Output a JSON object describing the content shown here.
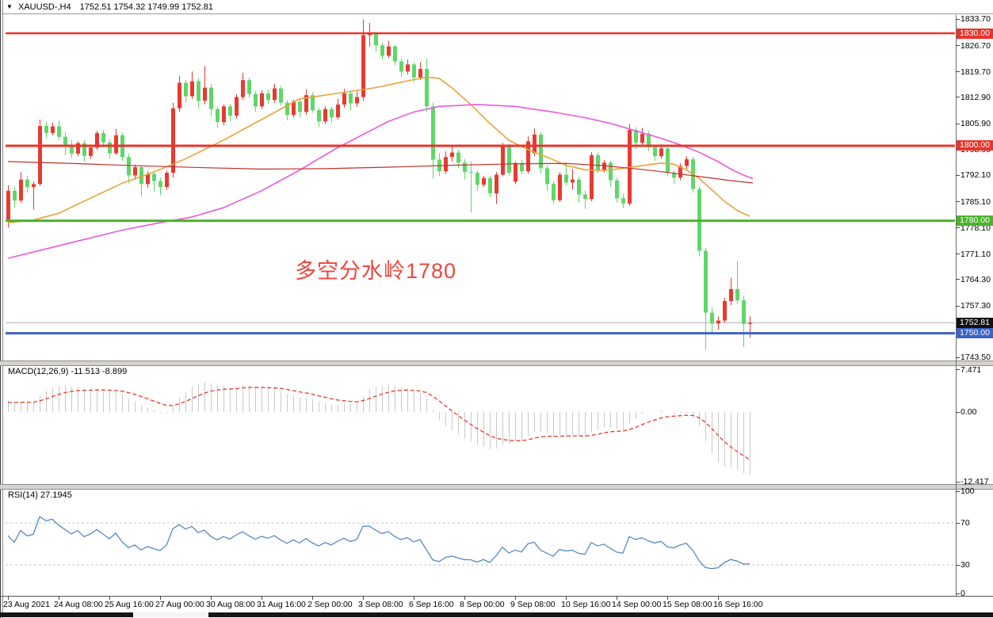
{
  "title": {
    "symbol": "XAUUSD-,H4",
    "quote": "1752.51 1754.32 1749.99 1752.81"
  },
  "chart_data": {
    "type": "candlestick",
    "symbol": "XAUUSD-",
    "timeframe": "H4",
    "ohlc_display": {
      "open": "1752.51",
      "high": "1754.32",
      "low": "1749.99",
      "close": "1752.81"
    },
    "annotation": {
      "text": "多空分水岭1780",
      "color": "#f2453a"
    },
    "price_ticks": [
      "1833.70",
      "1826.70",
      "1819.70",
      "1812.90",
      "1805.90",
      "1798.90",
      "1792.10",
      "1785.10",
      "1778.10",
      "1771.10",
      "1764.30",
      "1757.30",
      "1743.50"
    ],
    "levels": [
      {
        "price": 1830.0,
        "label": "1830.00",
        "color": "#e8352b",
        "width": 2.4
      },
      {
        "price": 1800.0,
        "label": "1800.00",
        "color": "#e8352b",
        "width": 3
      },
      {
        "price": 1780.0,
        "label": "1780.00",
        "color": "#4cb32c",
        "width": 3
      },
      {
        "price": 1750.0,
        "label": "1750.00",
        "color": "#3b63c4",
        "width": 3
      }
    ],
    "current_price": {
      "value": 1752.81,
      "label": "1752.81",
      "line_color": "#b0b0b0",
      "badge_bg": "#101010"
    },
    "x_labels": [
      [
        0,
        "23 Aug 2021"
      ],
      [
        8,
        "24 Aug 08:00"
      ],
      [
        16,
        "25 Aug 16:00"
      ],
      [
        24,
        "27 Aug 00:00"
      ],
      [
        32,
        "30 Aug 08:00"
      ],
      [
        40,
        "31 Aug 16:00"
      ],
      [
        48,
        "2 Sep 00:00"
      ],
      [
        56,
        "3 Sep 08:00"
      ],
      [
        64,
        "6 Sep 16:00"
      ],
      [
        72,
        "8 Sep 00:00"
      ],
      [
        80,
        "9 Sep 08:00"
      ],
      [
        88,
        "10 Sep 16:00"
      ],
      [
        96,
        "14 Sep 00:00"
      ],
      [
        104,
        "15 Sep 08:00"
      ],
      [
        112,
        "16 Sep 16:00"
      ]
    ],
    "candles": [
      [
        1780.3,
        1789.5,
        1778.2,
        1788.0
      ],
      [
        1788.0,
        1789.0,
        1783.5,
        1785.4
      ],
      [
        1785.4,
        1793.0,
        1784.8,
        1791.0
      ],
      [
        1791.0,
        1792.0,
        1787.5,
        1789.0
      ],
      [
        1789.0,
        1790.5,
        1783.0,
        1789.8
      ],
      [
        1789.8,
        1807.0,
        1789.3,
        1805.3
      ],
      [
        1805.3,
        1806.5,
        1802.0,
        1803.4
      ],
      [
        1803.4,
        1806.2,
        1802.8,
        1805.2
      ],
      [
        1805.2,
        1806.8,
        1801.5,
        1802.4
      ],
      [
        1802.4,
        1803.6,
        1797.5,
        1800.3
      ],
      [
        1800.3,
        1801.5,
        1796.8,
        1797.9
      ],
      [
        1797.9,
        1801.2,
        1797.2,
        1800.7
      ],
      [
        1800.7,
        1801.5,
        1795.8,
        1797.3
      ],
      [
        1797.3,
        1800.0,
        1796.5,
        1799.5
      ],
      [
        1799.5,
        1804.0,
        1798.8,
        1803.4
      ],
      [
        1803.4,
        1804.2,
        1800.2,
        1800.9
      ],
      [
        1800.9,
        1801.8,
        1796.5,
        1798.0
      ],
      [
        1798.0,
        1804.5,
        1797.5,
        1802.8
      ],
      [
        1802.8,
        1803.5,
        1796.0,
        1797.0
      ],
      [
        1797.0,
        1798.0,
        1790.0,
        1792.1
      ],
      [
        1792.1,
        1795.0,
        1791.0,
        1794.3
      ],
      [
        1794.3,
        1794.8,
        1786.5,
        1789.8
      ],
      [
        1789.8,
        1793.2,
        1788.8,
        1792.5
      ],
      [
        1792.5,
        1793.0,
        1787.8,
        1790.6
      ],
      [
        1790.6,
        1791.5,
        1786.8,
        1789.0
      ],
      [
        1789.0,
        1793.4,
        1788.2,
        1792.8
      ],
      [
        1792.8,
        1811.5,
        1791.5,
        1810.0
      ],
      [
        1810.0,
        1818.7,
        1809.0,
        1816.8
      ],
      [
        1816.8,
        1817.5,
        1811.5,
        1813.2
      ],
      [
        1813.2,
        1819.8,
        1812.5,
        1817.2
      ],
      [
        1817.2,
        1818.0,
        1810.0,
        1812.0
      ],
      [
        1812.0,
        1821.3,
        1811.0,
        1815.5
      ],
      [
        1815.5,
        1816.5,
        1808.0,
        1809.8
      ],
      [
        1809.8,
        1810.5,
        1804.8,
        1806.3
      ],
      [
        1806.3,
        1811.0,
        1805.5,
        1810.5
      ],
      [
        1810.5,
        1811.2,
        1806.5,
        1808.0
      ],
      [
        1808.0,
        1813.8,
        1807.2,
        1813.0
      ],
      [
        1813.0,
        1819.5,
        1812.2,
        1817.5
      ],
      [
        1817.5,
        1818.2,
        1812.8,
        1813.8
      ],
      [
        1813.8,
        1814.5,
        1809.0,
        1810.5
      ],
      [
        1810.5,
        1814.8,
        1809.8,
        1814.0
      ],
      [
        1814.0,
        1815.0,
        1811.2,
        1812.2
      ],
      [
        1812.2,
        1816.5,
        1811.5,
        1815.3
      ],
      [
        1815.3,
        1816.0,
        1810.8,
        1811.5
      ],
      [
        1811.5,
        1812.2,
        1806.8,
        1808.2
      ],
      [
        1808.2,
        1812.3,
        1807.5,
        1811.8
      ],
      [
        1811.8,
        1812.5,
        1807.5,
        1809.0
      ],
      [
        1809.0,
        1815.0,
        1808.3,
        1813.5
      ],
      [
        1813.5,
        1814.2,
        1808.8,
        1809.5
      ],
      [
        1809.5,
        1810.2,
        1805.0,
        1806.5
      ],
      [
        1806.5,
        1810.5,
        1805.8,
        1809.8
      ],
      [
        1809.8,
        1810.5,
        1806.0,
        1807.6
      ],
      [
        1807.6,
        1812.5,
        1807.0,
        1811.0
      ],
      [
        1811.0,
        1815.2,
        1810.2,
        1814.0
      ],
      [
        1814.0,
        1814.8,
        1809.5,
        1811.3
      ],
      [
        1811.3,
        1814.5,
        1810.3,
        1813.0
      ],
      [
        1813.0,
        1833.7,
        1812.0,
        1829.5
      ],
      [
        1829.5,
        1832.8,
        1826.5,
        1830.0
      ],
      [
        1830.0,
        1830.5,
        1825.0,
        1826.8
      ],
      [
        1826.8,
        1827.5,
        1823.0,
        1824.0
      ],
      [
        1824.0,
        1828.0,
        1823.5,
        1826.5
      ],
      [
        1826.5,
        1827.0,
        1821.5,
        1822.5
      ],
      [
        1822.5,
        1823.2,
        1818.5,
        1819.8
      ],
      [
        1819.8,
        1823.0,
        1819.0,
        1821.7
      ],
      [
        1821.7,
        1822.3,
        1817.0,
        1818.2
      ],
      [
        1818.2,
        1822.3,
        1817.5,
        1820.5
      ],
      [
        1820.5,
        1823.3,
        1809.0,
        1810.5
      ],
      [
        1810.5,
        1811.5,
        1791.3,
        1796.3
      ],
      [
        1796.3,
        1798.0,
        1792.0,
        1793.2
      ],
      [
        1793.2,
        1798.5,
        1792.5,
        1797.0
      ],
      [
        1797.0,
        1799.9,
        1795.8,
        1798.2
      ],
      [
        1798.2,
        1799.0,
        1794.0,
        1795.5
      ],
      [
        1795.5,
        1796.5,
        1791.0,
        1793.0
      ],
      [
        1793.0,
        1795.8,
        1782.2,
        1792.8
      ],
      [
        1792.8,
        1793.4,
        1788.0,
        1789.6
      ],
      [
        1789.6,
        1792.0,
        1789.0,
        1791.4
      ],
      [
        1791.4,
        1792.0,
        1786.3,
        1787.3
      ],
      [
        1787.3,
        1793.0,
        1784.5,
        1792.3
      ],
      [
        1792.3,
        1800.8,
        1791.8,
        1799.8
      ],
      [
        1799.8,
        1800.5,
        1792.0,
        1792.8
      ],
      [
        1790.4,
        1795.8,
        1789.8,
        1795.4
      ],
      [
        1795.4,
        1796.2,
        1792.4,
        1793.2
      ],
      [
        1793.2,
        1802.5,
        1792.6,
        1801.2
      ],
      [
        1798.0,
        1804.6,
        1797.2,
        1803.0
      ],
      [
        1803.0,
        1803.6,
        1792.5,
        1794.0
      ],
      [
        1794.0,
        1794.8,
        1788.0,
        1789.8
      ],
      [
        1789.8,
        1790.5,
        1784.5,
        1785.5
      ],
      [
        1785.5,
        1793.0,
        1785.0,
        1792.3
      ],
      [
        1792.3,
        1795.5,
        1789.5,
        1790.2
      ],
      [
        1790.2,
        1793.8,
        1788.3,
        1791.0
      ],
      [
        1791.0,
        1791.8,
        1784.8,
        1787.0
      ],
      [
        1787.0,
        1788.0,
        1783.2,
        1785.8
      ],
      [
        1785.8,
        1798.3,
        1785.2,
        1797.5
      ],
      [
        1797.5,
        1798.2,
        1792.8,
        1793.6
      ],
      [
        1793.6,
        1796.2,
        1792.9,
        1795.5
      ],
      [
        1795.5,
        1796.0,
        1789.0,
        1790.8
      ],
      [
        1790.8,
        1791.5,
        1784.9,
        1786.0
      ],
      [
        1786.0,
        1787.2,
        1783.3,
        1784.6
      ],
      [
        1784.6,
        1805.8,
        1784.0,
        1804.2
      ],
      [
        1804.2,
        1804.9,
        1799.0,
        1800.8
      ],
      [
        1800.8,
        1804.8,
        1800.0,
        1803.2
      ],
      [
        1803.2,
        1803.9,
        1798.6,
        1799.6
      ],
      [
        1799.6,
        1800.3,
        1796.0,
        1797.2
      ],
      [
        1797.2,
        1800.5,
        1796.6,
        1799.3
      ],
      [
        1799.3,
        1800.0,
        1791.8,
        1792.8
      ],
      [
        1792.8,
        1793.5,
        1789.8,
        1791.5
      ],
      [
        1791.5,
        1795.3,
        1790.8,
        1794.6
      ],
      [
        1794.6,
        1797.2,
        1793.8,
        1796.4
      ],
      [
        1796.4,
        1797.0,
        1787.5,
        1788.5
      ],
      [
        1788.5,
        1789.2,
        1770.5,
        1772.0
      ],
      [
        1772.0,
        1772.8,
        1745.6,
        1755.5
      ],
      [
        1755.5,
        1757.0,
        1750.3,
        1752.6
      ],
      [
        1752.6,
        1754.5,
        1751.0,
        1753.4
      ],
      [
        1753.4,
        1759.5,
        1752.8,
        1758.6
      ],
      [
        1758.6,
        1764.8,
        1757.5,
        1761.8
      ],
      [
        1761.8,
        1769.3,
        1757.8,
        1758.8
      ],
      [
        1758.8,
        1760.0,
        1746.3,
        1752.5
      ],
      [
        1752.5,
        1754.5,
        1748.8,
        1752.81
      ]
    ],
    "moving_averages": {
      "fast": {
        "name": "ma-fast",
        "color": "#e9a23b",
        "points": [
          [
            0,
            1779.5
          ],
          [
            4,
            1780.2
          ],
          [
            8,
            1782
          ],
          [
            13,
            1786
          ],
          [
            18,
            1790
          ],
          [
            23,
            1793
          ],
          [
            28,
            1796.5
          ],
          [
            34,
            1801.5
          ],
          [
            40,
            1807
          ],
          [
            46,
            1812.5
          ],
          [
            52,
            1814
          ],
          [
            58,
            1815.5
          ],
          [
            63,
            1817.3
          ],
          [
            66,
            1818.3
          ],
          [
            68,
            1818
          ],
          [
            70,
            1815.5
          ],
          [
            73,
            1811
          ],
          [
            76,
            1806
          ],
          [
            79,
            1801.5
          ],
          [
            82,
            1799
          ],
          [
            85,
            1797
          ],
          [
            88,
            1794.8
          ],
          [
            91,
            1793.6
          ],
          [
            94,
            1793.4
          ],
          [
            97,
            1794
          ],
          [
            100,
            1794.7
          ],
          [
            103,
            1795.4
          ],
          [
            105,
            1795.1
          ],
          [
            107,
            1793.6
          ],
          [
            109,
            1791.3
          ],
          [
            111,
            1788.3
          ],
          [
            113,
            1785.2
          ],
          [
            115,
            1782.8
          ],
          [
            117,
            1781.2
          ]
        ]
      },
      "mid": {
        "name": "ma-mid",
        "color": "#e959e0",
        "points": [
          [
            0,
            1770
          ],
          [
            6,
            1772.5
          ],
          [
            12,
            1775
          ],
          [
            18,
            1777.5
          ],
          [
            24,
            1779.5
          ],
          [
            29,
            1781
          ],
          [
            34,
            1783.5
          ],
          [
            40,
            1788
          ],
          [
            46,
            1793.5
          ],
          [
            52,
            1799.5
          ],
          [
            56,
            1803
          ],
          [
            60,
            1806.5
          ],
          [
            64,
            1809
          ],
          [
            68,
            1810.5
          ],
          [
            74,
            1811
          ],
          [
            80,
            1810.5
          ],
          [
            86,
            1809
          ],
          [
            91,
            1807.5
          ],
          [
            95,
            1806
          ],
          [
            99,
            1804
          ],
          [
            103,
            1802
          ],
          [
            106,
            1800.3
          ],
          [
            109,
            1798.3
          ],
          [
            112,
            1795.8
          ],
          [
            114,
            1793.8
          ],
          [
            116,
            1792.2
          ],
          [
            117.5,
            1791.2
          ]
        ]
      },
      "slow": {
        "name": "ma-slow",
        "color": "#c2302a",
        "points": [
          [
            0,
            1795.8
          ],
          [
            10,
            1795.3
          ],
          [
            20,
            1794.7
          ],
          [
            30,
            1794.2
          ],
          [
            40,
            1793.8
          ],
          [
            50,
            1793.9
          ],
          [
            60,
            1794.3
          ],
          [
            70,
            1794.8
          ],
          [
            80,
            1795.2
          ],
          [
            88,
            1795.3
          ],
          [
            94,
            1794.7
          ],
          [
            100,
            1793.7
          ],
          [
            105,
            1792.7
          ],
          [
            110,
            1791.6
          ],
          [
            114,
            1790.7
          ],
          [
            117.5,
            1790.1
          ]
        ]
      }
    },
    "macd": {
      "label": "MACD(12,26,9) -11.513 -8.899",
      "fast": 12,
      "slow": 26,
      "signal": 9,
      "value_main": -11.513,
      "value_signal": -8.899,
      "ticks": [
        [
          "7.471",
          7.471
        ],
        [
          "0.00",
          0
        ],
        [
          "-12.417",
          -12.417
        ]
      ],
      "hist_color": "#c9c9c9",
      "signal_color": "#e23b2e"
    },
    "rsi": {
      "label": "RSI(14) 27.1945",
      "period": 14,
      "value": 27.1945,
      "ticks": [
        [
          "100",
          100
        ],
        [
          "70",
          70
        ],
        [
          "30",
          30
        ],
        [
          "0",
          0
        ]
      ],
      "levels": [
        70,
        30
      ],
      "line_color": "#4a80c0",
      "level_color": "#c4c4c4"
    },
    "colors": {
      "bull": "#e83a30",
      "bear": "#5fd768",
      "background": "#ffffff",
      "text": "#000000"
    }
  }
}
